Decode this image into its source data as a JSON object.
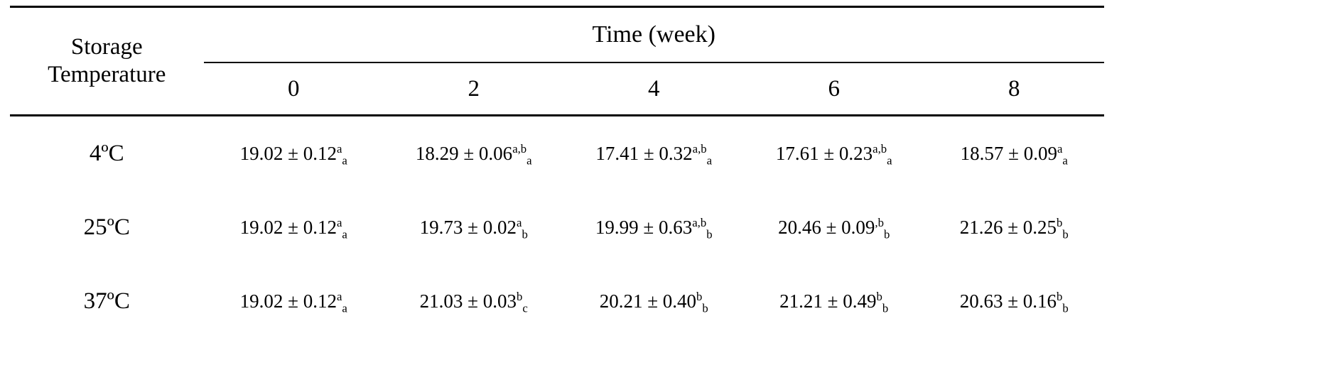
{
  "table": {
    "corner": {
      "line1": "Storage",
      "line2": "Temperature"
    },
    "col_group": "Time (week)",
    "time_columns": [
      "0",
      "2",
      "4",
      "6",
      "8"
    ],
    "rows": [
      {
        "temperature": "4ºC",
        "cells": [
          {
            "value": "19.02 ± 0.12",
            "sup": "a",
            "sub": "a"
          },
          {
            "value": "18.29 ± 0.06",
            "sup": "a,b",
            "sub": "a"
          },
          {
            "value": "17.41 ± 0.32",
            "sup": "a,b",
            "sub": "a"
          },
          {
            "value": "17.61 ± 0.23",
            "sup": "a,b",
            "sub": "a"
          },
          {
            "value": "18.57 ± 0.09",
            "sup": "a",
            "sub": "a"
          }
        ]
      },
      {
        "temperature": "25ºC",
        "cells": [
          {
            "value": "19.02 ± 0.12",
            "sup": "a",
            "sub": "a"
          },
          {
            "value": "19.73 ± 0.02",
            "sup": "a",
            "sub": "b"
          },
          {
            "value": "19.99 ± 0.63",
            "sup": "a,b",
            "sub": "b"
          },
          {
            "value": "20.46 ± 0.09",
            "sup": ",b",
            "sub": "b"
          },
          {
            "value": "21.26 ± 0.25",
            "sup": "b",
            "sub": "b"
          }
        ]
      },
      {
        "temperature": "37ºC",
        "cells": [
          {
            "value": "19.02 ± 0.12",
            "sup": "a",
            "sub": "a"
          },
          {
            "value": "21.03 ± 0.03",
            "sup": "b",
            "sub": "c"
          },
          {
            "value": "20.21 ± 0.40",
            "sup": "b",
            "sub": "b"
          },
          {
            "value": "21.21 ± 0.49",
            "sup": "b",
            "sub": "b"
          },
          {
            "value": "20.63 ± 0.16",
            "sup": "b",
            "sub": "b"
          }
        ]
      }
    ]
  }
}
